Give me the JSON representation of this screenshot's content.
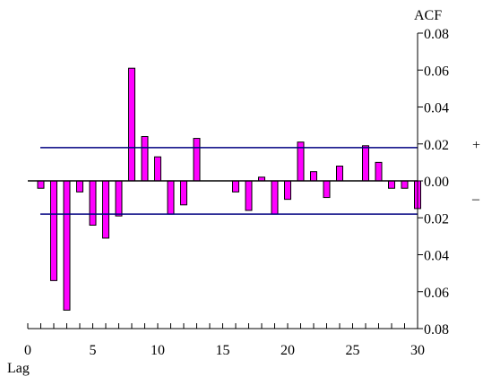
{
  "chart_data": {
    "type": "bar",
    "ylabel": "ACF",
    "xlabel": "Lag",
    "plus_sign": "+",
    "minus_sign": "–",
    "x_ticks": [
      "0",
      "5",
      "10",
      "15",
      "20",
      "25",
      "30"
    ],
    "y_ticks": [
      {
        "value": 0.08,
        "label": "0.08"
      },
      {
        "value": 0.06,
        "label": "0.06"
      },
      {
        "value": 0.04,
        "label": "0.04"
      },
      {
        "value": 0.02,
        "label": "0.02"
      },
      {
        "value": 0.0,
        "label": "0.00"
      },
      {
        "value": -0.02,
        "label": "0.02"
      },
      {
        "value": -0.04,
        "label": "0.04"
      },
      {
        "value": -0.06,
        "label": "0.06"
      },
      {
        "value": -0.08,
        "label": "0.08"
      }
    ],
    "xlim": [
      0,
      30
    ],
    "ylim": [
      -0.08,
      0.08
    ],
    "confidence_bound": 0.018,
    "lags": [
      1,
      2,
      3,
      4,
      5,
      6,
      7,
      8,
      9,
      10,
      11,
      12,
      13,
      14,
      15,
      16,
      17,
      18,
      19,
      20,
      21,
      22,
      23,
      24,
      25,
      26,
      27,
      28,
      29,
      30
    ],
    "values": [
      -0.004,
      -0.054,
      -0.07,
      -0.006,
      -0.024,
      -0.031,
      -0.019,
      0.061,
      0.024,
      0.013,
      -0.018,
      -0.013,
      0.023,
      0.0,
      0.0,
      -0.006,
      -0.016,
      0.002,
      -0.018,
      -0.01,
      0.021,
      0.005,
      -0.009,
      0.008,
      0.0,
      0.019,
      0.01,
      -0.004,
      -0.004,
      -0.015
    ],
    "colors": {
      "bar_fill": "#ff00ff",
      "bar_stroke": "#000000",
      "bound_line": "#000080",
      "axis": "#000000"
    }
  }
}
